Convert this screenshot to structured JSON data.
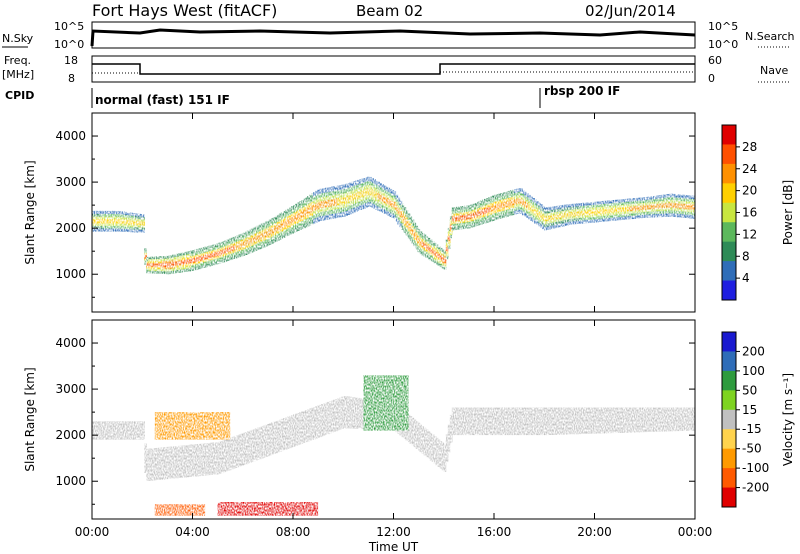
{
  "header": {
    "station": "Fort Hays West (fitACF)",
    "beam": "Beam 02",
    "date": "02/Jun/2014"
  },
  "top_panels": {
    "nsky_label": "N.Sky",
    "nsky_ticks": [
      "10^5",
      "10^0"
    ],
    "nsearch_label": "N.Search",
    "nsearch_ticks": [
      "10^5",
      "10^0"
    ],
    "freq_label": "Freq.",
    "freq_unit": "[MHz]",
    "freq_ticks": [
      "18",
      "8"
    ],
    "nave_label": "Nave",
    "nave_ticks": [
      "60",
      "0"
    ],
    "cpid_label": "CPID",
    "cpid_segments": [
      {
        "label": "normal (fast) 151 IF",
        "start_hour": 0,
        "end_hour": 18
      },
      {
        "label": "rbsp 200 IF",
        "start_hour": 18,
        "end_hour": 24
      }
    ]
  },
  "colors": {
    "power": [
      "#1f1fe0",
      "#2f6db8",
      "#2e8b57",
      "#5cb85c",
      "#c8e640",
      "#ffd000",
      "#ff9000",
      "#ff5000",
      "#e00000"
    ],
    "velocity": [
      "#1a1ad0",
      "#2f6db8",
      "#2e9b3e",
      "#7ed321",
      "#c0c0c0",
      "#ffd34d",
      "#ff9a00",
      "#ff5a00",
      "#e00000"
    ]
  },
  "chart_data": [
    {
      "type": "heatmap",
      "title": "",
      "xlabel": "Time UT",
      "ylabel": "Slant Range [km]",
      "x_ticks": [
        "00:00",
        "04:00",
        "08:00",
        "12:00",
        "16:00",
        "20:00",
        "00:00"
      ],
      "xlim": [
        0,
        24
      ],
      "y_ticks": [
        1000,
        2000,
        3000,
        4000
      ],
      "ylim": [
        180,
        4500
      ],
      "colorbar": {
        "label": "Power [dB]",
        "ticks": [
          4,
          8,
          12,
          16,
          20,
          24,
          28
        ],
        "range": [
          0,
          30
        ]
      },
      "echo_bands": [
        {
          "hour": 0.0,
          "center_km": 2150,
          "width_km": 450,
          "peak_db": 18
        },
        {
          "hour": 1.0,
          "center_km": 2150,
          "width_km": 450,
          "peak_db": 20
        },
        {
          "hour": 2.0,
          "center_km": 2100,
          "width_km": 400,
          "peak_db": 18
        },
        {
          "hour": 2.1,
          "center_km": 1200,
          "width_km": 350,
          "peak_db": 26
        },
        {
          "hour": 3.0,
          "center_km": 1200,
          "width_km": 400,
          "peak_db": 28
        },
        {
          "hour": 4.0,
          "center_km": 1300,
          "width_km": 450,
          "peak_db": 26
        },
        {
          "hour": 5.0,
          "center_km": 1450,
          "width_km": 450,
          "peak_db": 25
        },
        {
          "hour": 6.0,
          "center_km": 1650,
          "width_km": 500,
          "peak_db": 24
        },
        {
          "hour": 7.0,
          "center_km": 1900,
          "width_km": 550,
          "peak_db": 24
        },
        {
          "hour": 8.0,
          "center_km": 2200,
          "width_km": 600,
          "peak_db": 24
        },
        {
          "hour": 9.0,
          "center_km": 2500,
          "width_km": 700,
          "peak_db": 22
        },
        {
          "hour": 10.0,
          "center_km": 2600,
          "width_km": 700,
          "peak_db": 20
        },
        {
          "hour": 11.0,
          "center_km": 2800,
          "width_km": 650,
          "peak_db": 20
        },
        {
          "hour": 12.0,
          "center_km": 2500,
          "width_km": 600,
          "peak_db": 22
        },
        {
          "hour": 13.0,
          "center_km": 1700,
          "width_km": 500,
          "peak_db": 24
        },
        {
          "hour": 14.0,
          "center_km": 1300,
          "width_km": 400,
          "peak_db": 28
        },
        {
          "hour": 14.3,
          "center_km": 2200,
          "width_km": 500,
          "peak_db": 26
        },
        {
          "hour": 15.0,
          "center_km": 2250,
          "width_km": 500,
          "peak_db": 26
        },
        {
          "hour": 16.0,
          "center_km": 2450,
          "width_km": 550,
          "peak_db": 24
        },
        {
          "hour": 17.0,
          "center_km": 2600,
          "width_km": 550,
          "peak_db": 22
        },
        {
          "hour": 18.0,
          "center_km": 2200,
          "width_km": 500,
          "peak_db": 18
        },
        {
          "hour": 19.0,
          "center_km": 2300,
          "width_km": 450,
          "peak_db": 18
        },
        {
          "hour": 20.0,
          "center_km": 2350,
          "width_km": 450,
          "peak_db": 20
        },
        {
          "hour": 21.0,
          "center_km": 2400,
          "width_km": 450,
          "peak_db": 20
        },
        {
          "hour": 22.0,
          "center_km": 2450,
          "width_km": 450,
          "peak_db": 22
        },
        {
          "hour": 23.0,
          "center_km": 2500,
          "width_km": 500,
          "peak_db": 22
        },
        {
          "hour": 24.0,
          "center_km": 2450,
          "width_km": 500,
          "peak_db": 22
        }
      ]
    },
    {
      "type": "heatmap",
      "title": "",
      "xlabel": "Time UT",
      "ylabel": "Slant Range [km]",
      "x_ticks": [
        "00:00",
        "04:00",
        "08:00",
        "12:00",
        "16:00",
        "20:00",
        "00:00"
      ],
      "xlim": [
        0,
        24
      ],
      "y_ticks": [
        1000,
        2000,
        3000,
        4000
      ],
      "ylim": [
        180,
        4500
      ],
      "colorbar": {
        "label": "Velocity [m s⁻¹]",
        "ticks": [
          200,
          100,
          50,
          15,
          -15,
          -50,
          -100,
          -200
        ],
        "range": [
          -250,
          250
        ]
      },
      "ground_scatter": [
        {
          "hour": 0.0,
          "center_km": 2100,
          "width_km": 400
        },
        {
          "hour": 2.0,
          "center_km": 2100,
          "width_km": 400
        },
        {
          "hour": 2.1,
          "center_km": 1350,
          "width_km": 700
        },
        {
          "hour": 5.0,
          "center_km": 1500,
          "width_km": 700
        },
        {
          "hour": 8.0,
          "center_km": 2100,
          "width_km": 700
        },
        {
          "hour": 10.0,
          "center_km": 2500,
          "width_km": 700
        },
        {
          "hour": 12.0,
          "center_km": 2400,
          "width_km": 600
        },
        {
          "hour": 14.0,
          "center_km": 1500,
          "width_km": 600
        },
        {
          "hour": 14.3,
          "center_km": 2300,
          "width_km": 600
        },
        {
          "hour": 18.0,
          "center_km": 2300,
          "width_km": 600
        },
        {
          "hour": 24.0,
          "center_km": 2350,
          "width_km": 500
        }
      ],
      "ionospheric_patches": [
        {
          "hour_start": 10.8,
          "hour_end": 12.6,
          "km_low": 2100,
          "km_high": 3300,
          "velocity": 60
        },
        {
          "hour_start": 2.5,
          "hour_end": 5.5,
          "km_low": 1900,
          "km_high": 2500,
          "velocity": -60
        },
        {
          "hour_start": 5.0,
          "hour_end": 9.0,
          "km_low": 250,
          "km_high": 550,
          "velocity": -150
        },
        {
          "hour_start": 2.5,
          "hour_end": 4.5,
          "km_low": 250,
          "km_high": 500,
          "velocity": -80
        }
      ]
    }
  ]
}
